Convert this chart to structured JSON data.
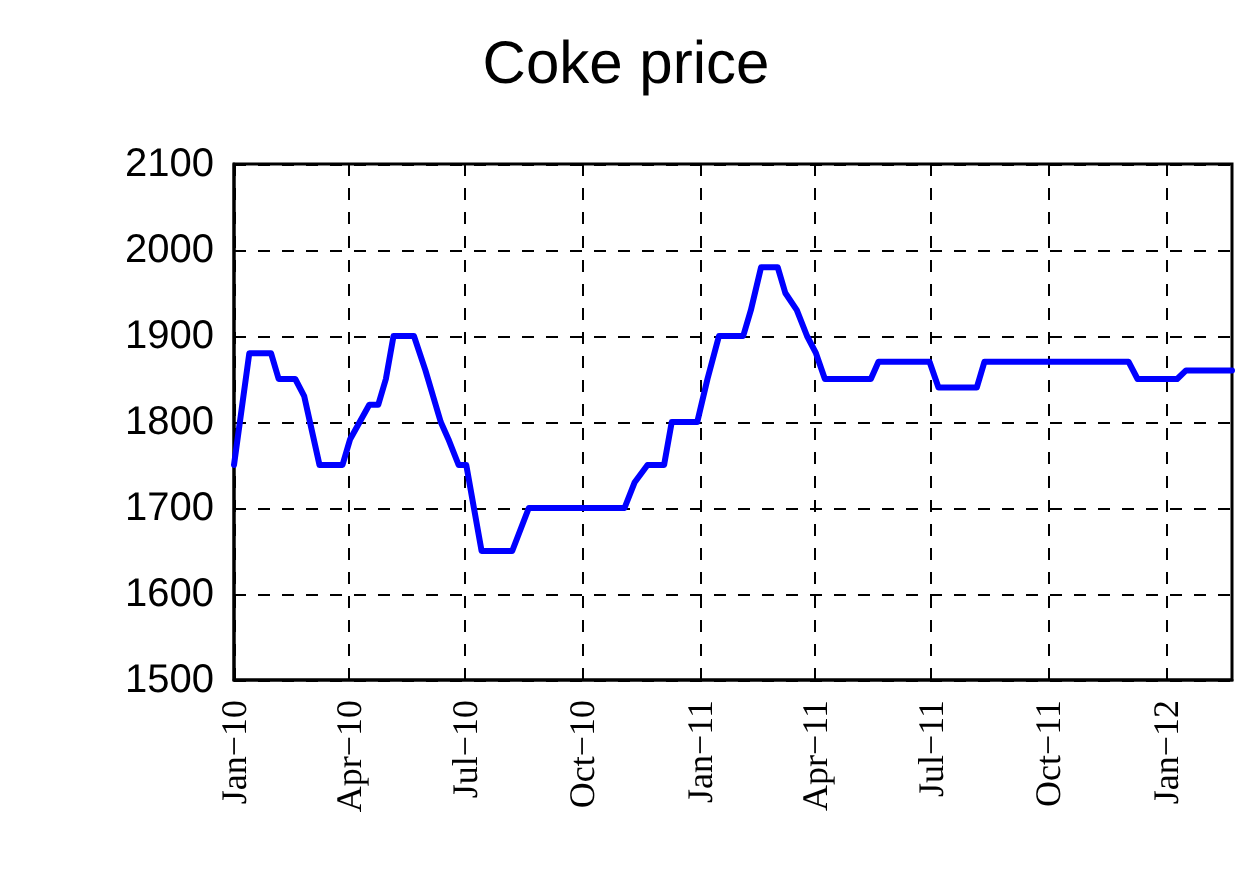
{
  "chart_data": {
    "type": "line",
    "title": "Coke price",
    "x": [
      "2010-01-01",
      "2010-01-13",
      "2010-01-30",
      "2010-02-05",
      "2010-02-18",
      "2010-02-25",
      "2010-03-09",
      "2010-03-27",
      "2010-04-02",
      "2010-04-17",
      "2010-04-24",
      "2010-04-30",
      "2010-05-06",
      "2010-05-22",
      "2010-05-31",
      "2010-06-12",
      "2010-06-18",
      "2010-06-26",
      "2010-07-02",
      "2010-07-14",
      "2010-08-07",
      "2010-08-20",
      "2010-11-03",
      "2010-11-11",
      "2010-11-21",
      "2010-12-04",
      "2010-12-10",
      "2010-12-30",
      "2011-01-07",
      "2011-01-16",
      "2011-02-04",
      "2011-02-10",
      "2011-02-18",
      "2011-03-03",
      "2011-03-09",
      "2011-03-18",
      "2011-03-26",
      "2011-04-02",
      "2011-04-09",
      "2011-05-15",
      "2011-05-21",
      "2011-06-30",
      "2011-07-07",
      "2011-08-06",
      "2011-08-12",
      "2011-12-03",
      "2011-12-10",
      "2012-01-10",
      "2012-01-17",
      "2012-02-22"
    ],
    "series": [
      {
        "color": "#0000ff",
        "values": [
          1750,
          1880,
          1880,
          1850,
          1850,
          1830,
          1750,
          1750,
          1780,
          1820,
          1820,
          1850,
          1900,
          1900,
          1860,
          1800,
          1780,
          1750,
          1750,
          1650,
          1650,
          1700,
          1700,
          1730,
          1750,
          1750,
          1800,
          1800,
          1850,
          1900,
          1900,
          1930,
          1980,
          1980,
          1950,
          1930,
          1900,
          1880,
          1850,
          1850,
          1870,
          1870,
          1840,
          1840,
          1870,
          1870,
          1850,
          1850,
          1860,
          1860
        ]
      }
    ],
    "xlim": [
      "2010-01-01",
      "2012-02-22"
    ],
    "xticks": [
      {
        "value": "2010-01-01",
        "label": "Jan−10"
      },
      {
        "value": "2010-04-01",
        "label": "Apr−10"
      },
      {
        "value": "2010-07-01",
        "label": "Jul−10"
      },
      {
        "value": "2010-10-01",
        "label": "Oct−10"
      },
      {
        "value": "2011-01-01",
        "label": "Jan−11"
      },
      {
        "value": "2011-04-01",
        "label": "Apr−11"
      },
      {
        "value": "2011-07-01",
        "label": "Jul−11"
      },
      {
        "value": "2011-10-01",
        "label": "Oct−11"
      },
      {
        "value": "2012-01-01",
        "label": "Jan−12"
      }
    ],
    "ylim": [
      1500,
      2100
    ],
    "yticks": [
      1500,
      1600,
      1700,
      1800,
      1900,
      2000,
      2100
    ],
    "grid": true,
    "marker": "none",
    "line_style": "solid"
  }
}
